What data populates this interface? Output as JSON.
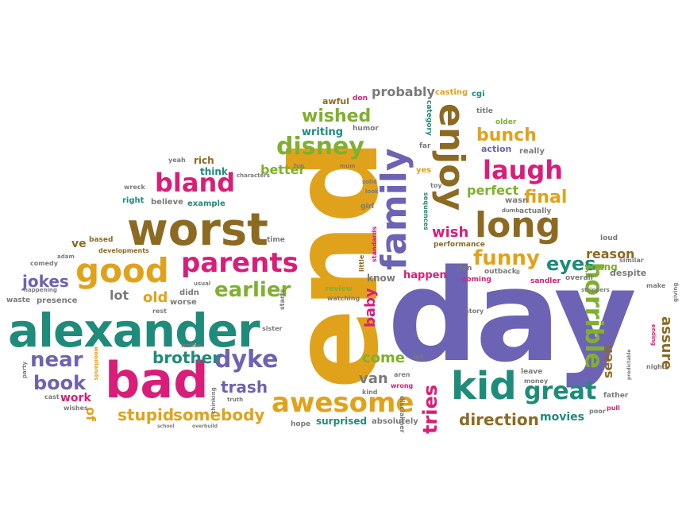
{
  "colors": {
    "purple": "#6c63b4",
    "gold": "#e1a21b",
    "magenta": "#d81e79",
    "green": "#7fb02e",
    "teal": "#1f8b7a",
    "brown": "#8c6a22",
    "gray": "#7a7a7a"
  },
  "words": {
    "day": "day",
    "end": "end",
    "alexander": "alexander",
    "bad": "bad",
    "worst": "worst",
    "good": "good",
    "family": "family",
    "enjoy": "enjoy",
    "long": "long",
    "kid": "kid",
    "parents": "parents",
    "awesome": "awesome",
    "great": "great",
    "bland": "bland",
    "laugh": "laugh",
    "disney": "disney",
    "horrible": "horrible",
    "dyke": "dyke",
    "near": "near",
    "book": "book",
    "earlier": "earlier",
    "funny": "funny",
    "brother": "brother",
    "trash": "trash",
    "stupid": "stupid",
    "somebody": "somebody",
    "direction": "direction",
    "tries": "tries",
    "wished": "wished",
    "bunch": "bunch",
    "perfect": "perfect",
    "final": "final",
    "eyes": "eyes",
    "reason": "reason",
    "wish": "wish",
    "jokes": "jokes",
    "old": "old",
    "lot": "lot",
    "come": "come",
    "van": "van",
    "baby": "baby",
    "assure": "assure",
    "seen": "seen",
    "movies": "movies",
    "work": "work",
    "probably": "probably",
    "better": "better",
    "writing": "writing",
    "rich": "rich",
    "think": "think",
    "happen": "happen",
    "know": "know",
    "young": "young",
    "ve": "ve",
    "of": "of",
    "surprised": "surprised",
    "absolutely": "absolutely",
    "hope": "hope",
    "awful": "awful",
    "casting": "casting",
    "cgi": "cgi",
    "title": "title",
    "older": "older",
    "action": "action",
    "really": "really",
    "humor": "humor",
    "category": "category",
    "far": "far",
    "yes": "yes",
    "toy": "toy",
    "sequences": "sequences",
    "girl": "girl",
    "standards": "standards",
    "little": "little",
    "performance": "performance",
    "fan": "fan",
    "outback": "outback",
    "coming": "coming",
    "sandler": "sandler",
    "overall": "overall",
    "similar": "similar",
    "despite": "despite",
    "make": "make",
    "loud": "loud",
    "actually": "actually",
    "dumb": "dumb",
    "wasn": "wasn",
    "strippers": "strippers",
    "giving": "giving",
    "ending": "ending",
    "night": "night",
    "father": "father",
    "poor": "poor",
    "pull": "pull",
    "leave": "leave",
    "money": "money",
    "story": "story",
    "wrong": "wrong",
    "aren": "aren",
    "kind": "kind",
    "let": "let",
    "disclaimer": "disclaimer",
    "review": "review",
    "watching": "watching",
    "starts": "starts",
    "sister": "sister",
    "truth": "truth",
    "thinking": "thinking",
    "trailer": "trailer",
    "worse": "worse",
    "rest": "rest",
    "didn": "didn",
    "usual": "usual",
    "time": "time",
    "presence": "presence",
    "waste": "waste",
    "happening": "happening",
    "comedy": "comedy",
    "adam": "adam",
    "based": "based",
    "developments": "developments",
    "example": "example",
    "believe": "believe",
    "right": "right",
    "wreck": "wreck",
    "yeah": "yeah",
    "characters": "characters",
    "fun": "fun",
    "mum": "mum",
    "solid": "solid",
    "look": "look",
    "don": "don",
    "cast": "cast",
    "wishes": "wishes",
    "school": "school",
    "overbuild": "overbuild",
    "party": "party",
    "woodlands": "woodlands",
    "predictable": "predictable",
    "ll": "ll"
  }
}
